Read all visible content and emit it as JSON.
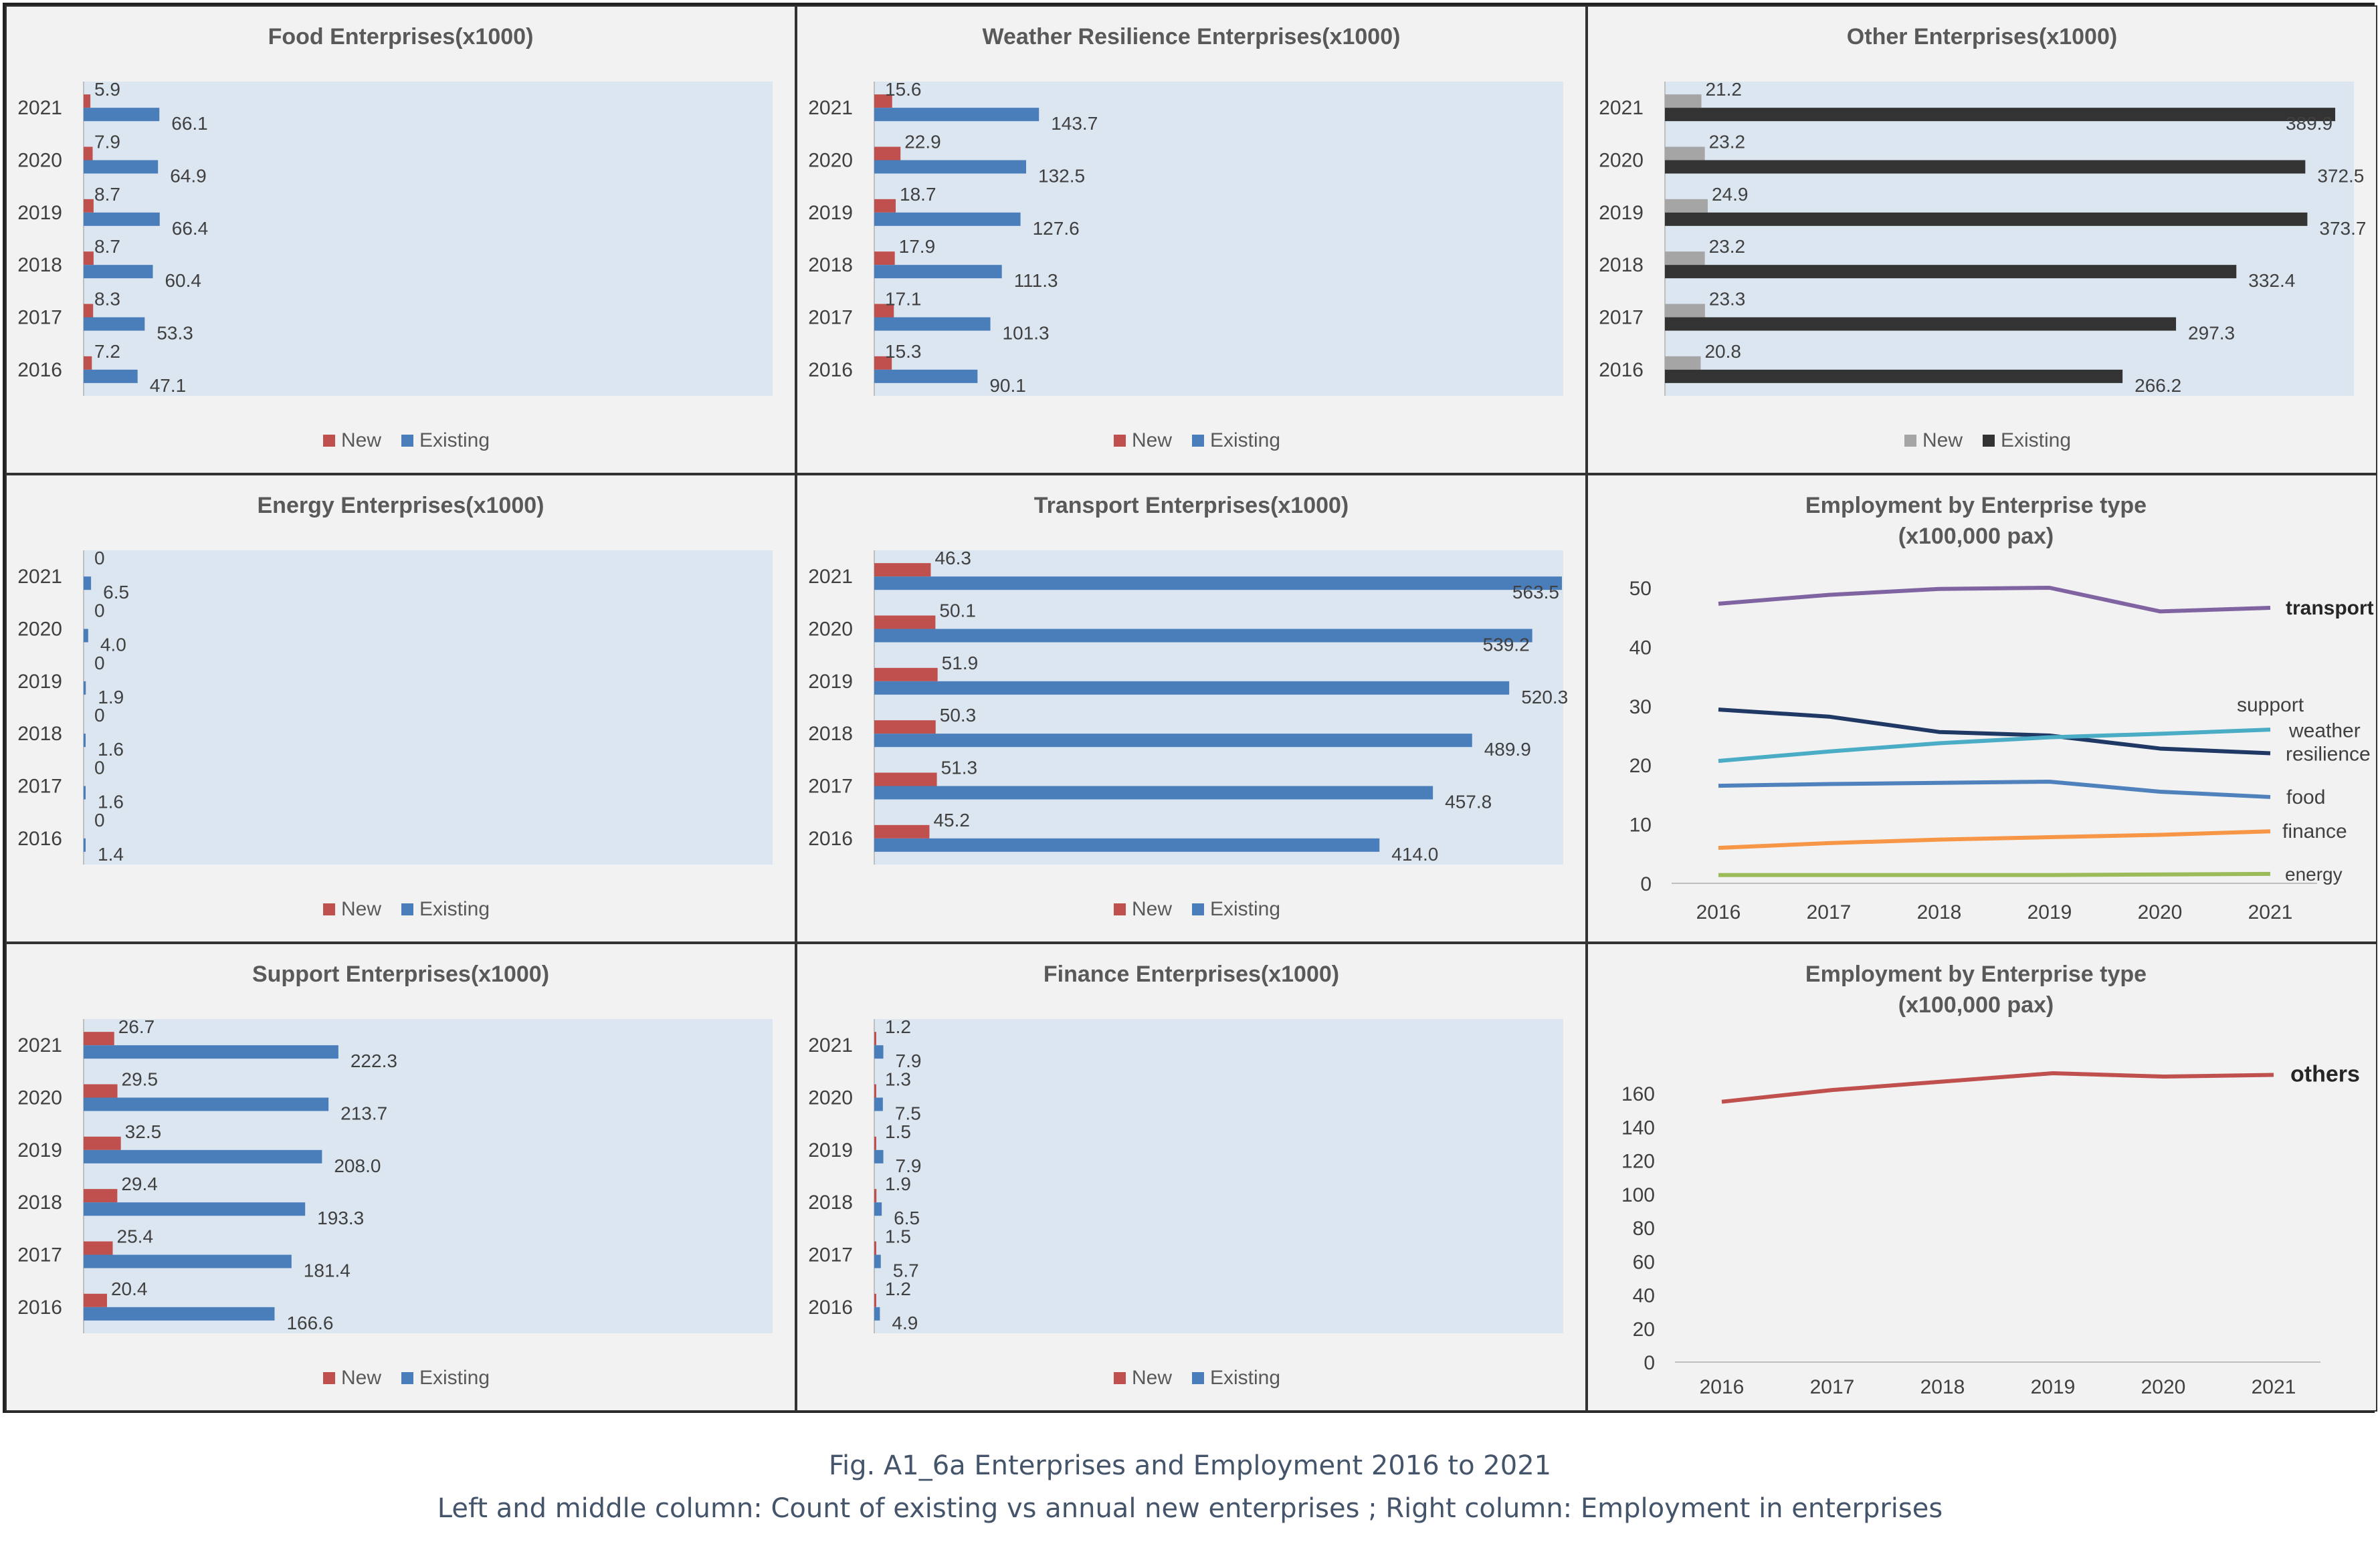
{
  "figure": {
    "caption_line1": "Fig. A1_6a Enterprises and Employment 2016 to 2021",
    "caption_line2": "Left and middle column: Count of existing vs annual new enterprises ; Right column: Employment in enterprises"
  },
  "colors": {
    "new": "#c0504d",
    "existing": "#4a7ebb",
    "other_new": "#a5a5a5",
    "other_existing": "#333333",
    "plot_bg": "#dce6f1",
    "panel_bg": "#f2f2f2"
  },
  "chart_data": [
    {
      "type": "bar",
      "orientation": "horizontal",
      "title": "Food Enterprises(x1000)",
      "categories": [
        "2021",
        "2020",
        "2019",
        "2018",
        "2017",
        "2016"
      ],
      "series": [
        {
          "name": "New",
          "values": [
            5.9,
            7.9,
            8.7,
            8.7,
            8.3,
            7.2
          ],
          "labels": [
            "5.9",
            "7.9",
            "8.7",
            "8.7",
            "8.3",
            "7.2"
          ]
        },
        {
          "name": "Existing",
          "values": [
            66.1,
            64.9,
            66.4,
            60.4,
            53.3,
            47.1
          ],
          "labels": [
            "66.1",
            "64.9",
            "66.4",
            "60.4",
            "53.3",
            "47.1"
          ]
        }
      ],
      "xlim": [
        0,
        600
      ],
      "legend": "bottom"
    },
    {
      "type": "bar",
      "orientation": "horizontal",
      "title": "Weather Resilience Enterprises(x1000)",
      "categories": [
        "2021",
        "2020",
        "2019",
        "2018",
        "2017",
        "2016"
      ],
      "series": [
        {
          "name": "New",
          "values": [
            15.6,
            22.9,
            18.7,
            17.9,
            17.1,
            15.3
          ],
          "labels": [
            "15.6",
            "22.9",
            "18.7",
            "17.9",
            "17.1",
            "15.3"
          ]
        },
        {
          "name": "Existing",
          "values": [
            143.7,
            132.5,
            127.6,
            111.3,
            101.3,
            90.1
          ],
          "labels": [
            "143.7",
            "132.5",
            "127.6",
            "111.3",
            "101.3",
            "90.1"
          ]
        }
      ],
      "xlim": [
        0,
        600
      ],
      "legend": "bottom"
    },
    {
      "type": "bar",
      "orientation": "horizontal",
      "title": "Other Enterprises(x1000)",
      "categories": [
        "2021",
        "2020",
        "2019",
        "2018",
        "2017",
        "2016"
      ],
      "series": [
        {
          "name": "New",
          "values": [
            21.2,
            23.2,
            24.9,
            23.2,
            23.3,
            20.8
          ],
          "labels": [
            "21.2",
            "23.2",
            "24.9",
            "23.2",
            "23.3",
            "20.8"
          ]
        },
        {
          "name": "Existing",
          "values": [
            389.9,
            372.5,
            373.7,
            332.4,
            297.3,
            266.2
          ],
          "labels": [
            "389.9",
            "372.5",
            "373.7",
            "332.4",
            "297.3",
            "266.2"
          ]
        }
      ],
      "xlim": [
        0,
        400
      ],
      "legend": "bottom"
    },
    {
      "type": "bar",
      "orientation": "horizontal",
      "title": "Energy Enterprises(x1000)",
      "categories": [
        "2021",
        "2020",
        "2019",
        "2018",
        "2017",
        "2016"
      ],
      "series": [
        {
          "name": "New",
          "values": [
            0,
            0,
            0,
            0,
            0,
            0
          ],
          "labels": [
            "0",
            "0",
            "0",
            "0",
            "0",
            "0"
          ]
        },
        {
          "name": "Existing",
          "values": [
            6.5,
            4.0,
            1.9,
            1.6,
            1.6,
            1.4
          ],
          "labels": [
            "6.5",
            "4.0",
            "1.9",
            "1.6",
            "1.6",
            "1.4"
          ]
        }
      ],
      "xlim": [
        0,
        600
      ],
      "legend": "bottom"
    },
    {
      "type": "bar",
      "orientation": "horizontal",
      "title": "Transport Enterprises(x1000)",
      "categories": [
        "2021",
        "2020",
        "2019",
        "2018",
        "2017",
        "2016"
      ],
      "series": [
        {
          "name": "New",
          "values": [
            46.3,
            50.1,
            51.9,
            50.3,
            51.3,
            45.2
          ],
          "labels": [
            "46.3",
            "50.1",
            "51.9",
            "50.3",
            "51.3",
            "45.2"
          ]
        },
        {
          "name": "Existing",
          "values": [
            563.5,
            539.2,
            520.3,
            489.9,
            457.8,
            414.0
          ],
          "labels": [
            "563.5",
            "539.2",
            "520.3",
            "489.9",
            "457.8",
            "414.0"
          ]
        }
      ],
      "xlim": [
        0,
        563.5
      ],
      "legend": "bottom"
    },
    {
      "type": "line",
      "title": "Employment by Enterprise type",
      "subtitle": "(x100,000 pax)",
      "x": [
        "2016",
        "2017",
        "2018",
        "2019",
        "2020",
        "2021"
      ],
      "yticks": [
        "0",
        "10",
        "20",
        "30",
        "40",
        "50"
      ],
      "ylim": [
        0,
        50
      ],
      "series": [
        {
          "name": "transport",
          "values": [
            47.3,
            48.8,
            49.8,
            50.0,
            46.0,
            46.6
          ],
          "color": "#8064a2"
        },
        {
          "name": "support",
          "values": [
            29.4,
            28.2,
            25.6,
            25.0,
            22.8,
            22.0
          ],
          "color": "#1f3864"
        },
        {
          "name": "weather resilience",
          "values": [
            20.7,
            22.3,
            23.7,
            24.7,
            25.3,
            26.0
          ],
          "color": "#4bacc6"
        },
        {
          "name": "food",
          "values": [
            16.5,
            16.8,
            17.0,
            17.2,
            15.5,
            14.6
          ],
          "color": "#4f81bd"
        },
        {
          "name": "finance",
          "values": [
            6.0,
            6.8,
            7.4,
            7.8,
            8.2,
            8.8
          ],
          "color": "#f79646"
        },
        {
          "name": "energy",
          "values": [
            1.4,
            1.4,
            1.4,
            1.4,
            1.5,
            1.6
          ],
          "color": "#9bbb59"
        }
      ],
      "labels": {
        "transport": "transport",
        "support": "support",
        "weather_line1": "weather",
        "weather_line2": "resilience",
        "food": "food",
        "finance": "finance",
        "energy": "energy"
      },
      "grid": false
    },
    {
      "type": "bar",
      "orientation": "horizontal",
      "title": "Support Enterprises(x1000)",
      "categories": [
        "2021",
        "2020",
        "2019",
        "2018",
        "2017",
        "2016"
      ],
      "series": [
        {
          "name": "New",
          "values": [
            26.7,
            29.5,
            32.5,
            29.4,
            25.4,
            20.4
          ],
          "labels": [
            "26.7",
            "29.5",
            "32.5",
            "29.4",
            "25.4",
            "20.4"
          ]
        },
        {
          "name": "Existing",
          "values": [
            222.3,
            213.7,
            208.0,
            193.3,
            181.4,
            166.6
          ],
          "labels": [
            "222.3",
            "213.7",
            "208.0",
            "193.3",
            "181.4",
            "166.6"
          ]
        }
      ],
      "xlim": [
        0,
        600
      ],
      "legend": "bottom"
    },
    {
      "type": "bar",
      "orientation": "horizontal",
      "title": "Finance Enterprises(x1000)",
      "categories": [
        "2021",
        "2020",
        "2019",
        "2018",
        "2017",
        "2016"
      ],
      "series": [
        {
          "name": "New",
          "values": [
            1.2,
            1.3,
            1.5,
            1.9,
            1.5,
            1.2
          ],
          "labels": [
            "1.2",
            "1.3",
            "1.5",
            "1.9",
            "1.5",
            "1.2"
          ]
        },
        {
          "name": "Existing",
          "values": [
            7.9,
            7.5,
            7.9,
            6.5,
            5.7,
            4.9
          ],
          "labels": [
            "7.9",
            "7.5",
            "7.9",
            "6.5",
            "5.7",
            "4.9"
          ]
        }
      ],
      "xlim": [
        0,
        600
      ],
      "legend": "bottom"
    },
    {
      "type": "line",
      "title": "Employment by Enterprise type",
      "subtitle": "(x100,000 pax)",
      "x": [
        "2016",
        "2017",
        "2018",
        "2019",
        "2020",
        "2021"
      ],
      "yticks": [
        "0",
        "20",
        "40",
        "60",
        "80",
        "100",
        "120",
        "140",
        "160"
      ],
      "ylim": [
        0,
        170
      ],
      "series": [
        {
          "name": "others",
          "values": [
            155,
            162,
            167,
            172,
            170,
            171
          ],
          "color": "#c0504d"
        }
      ],
      "labels": {
        "others": "others"
      },
      "grid": false
    }
  ]
}
